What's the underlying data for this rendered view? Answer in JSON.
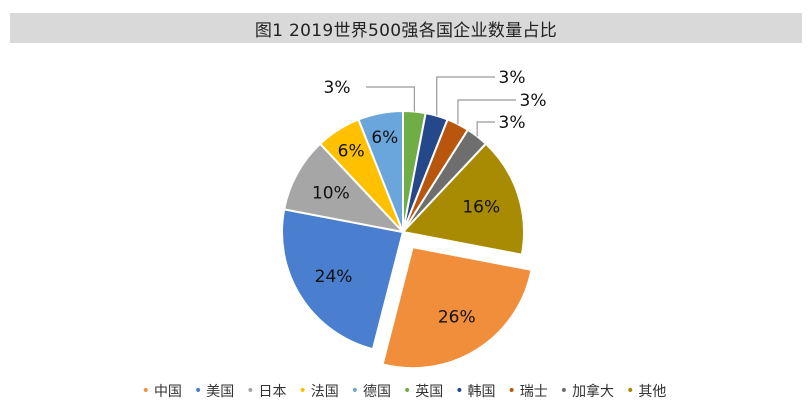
{
  "chart_data": {
    "type": "pie",
    "title": "图1  2019世界500强各国企业数量占比",
    "categories": [
      "中国",
      "美国",
      "日本",
      "法国",
      "德国",
      "英国",
      "韩国",
      "瑞士",
      "加拿大",
      "其他"
    ],
    "values": [
      26,
      24,
      10,
      6,
      6,
      3,
      3,
      3,
      3,
      16
    ],
    "labels": [
      "26%",
      "24%",
      "10%",
      "6%",
      "6%",
      "3%",
      "3%",
      "3%",
      "3%",
      "16%"
    ],
    "colors": [
      "#f08e3b",
      "#4a7fcf",
      "#a6a6a6",
      "#ffc000",
      "#6aa6dc",
      "#70ad47",
      "#24488a",
      "#b8560e",
      "#6e6e6e",
      "#a88a03"
    ],
    "exploded": [
      "中国"
    ],
    "legend_position": "bottom"
  }
}
